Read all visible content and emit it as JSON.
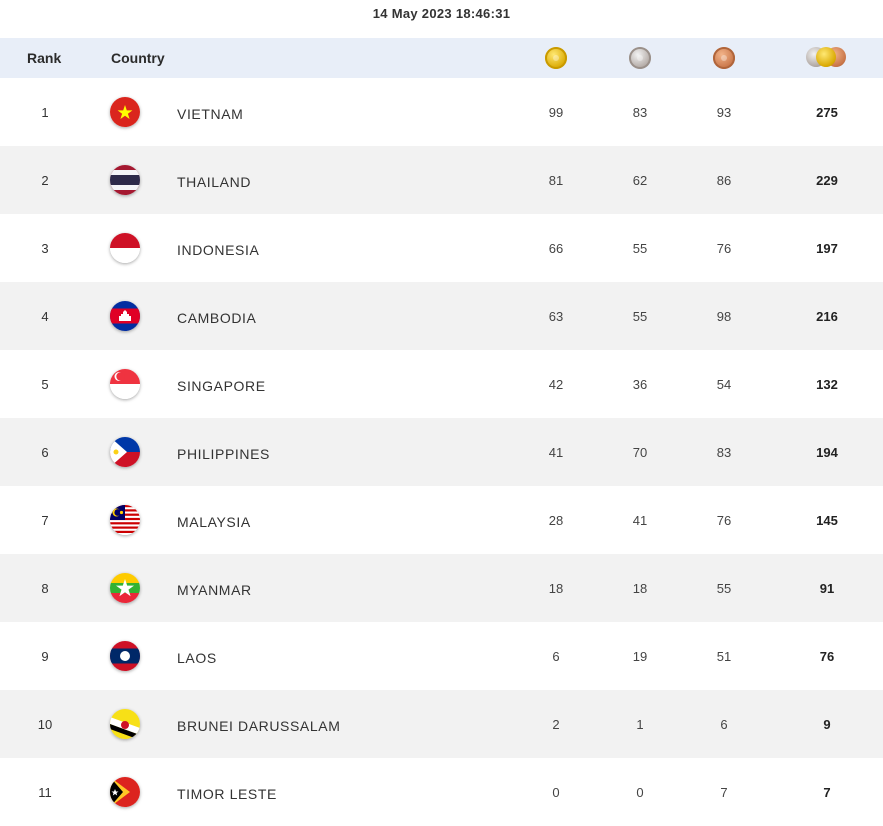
{
  "timestamp": "14 May 2023  18:46:31",
  "header": {
    "rank_label": "Rank",
    "country_label": "Country",
    "icons": [
      "gold-medal-icon",
      "silver-medal-icon",
      "bronze-medal-icon",
      "total-medals-icon"
    ]
  },
  "colors": {
    "header_bg": "#e8eef8",
    "alt_row_bg": "#f2f2f2",
    "gold": "#d9a800",
    "silver": "#b0a7a2",
    "bronze": "#c87447"
  },
  "rows": [
    {
      "rank": "1",
      "country": "VIETNAM",
      "flag": "vietnam-flag-icon",
      "gold": "99",
      "silver": "83",
      "bronze": "93",
      "total": "275"
    },
    {
      "rank": "2",
      "country": "THAILAND",
      "flag": "thailand-flag-icon",
      "gold": "81",
      "silver": "62",
      "bronze": "86",
      "total": "229"
    },
    {
      "rank": "3",
      "country": "INDONESIA",
      "flag": "indonesia-flag-icon",
      "gold": "66",
      "silver": "55",
      "bronze": "76",
      "total": "197"
    },
    {
      "rank": "4",
      "country": "CAMBODIA",
      "flag": "cambodia-flag-icon",
      "gold": "63",
      "silver": "55",
      "bronze": "98",
      "total": "216"
    },
    {
      "rank": "5",
      "country": "SINGAPORE",
      "flag": "singapore-flag-icon",
      "gold": "42",
      "silver": "36",
      "bronze": "54",
      "total": "132"
    },
    {
      "rank": "6",
      "country": "PHILIPPINES",
      "flag": "philippines-flag-icon",
      "gold": "41",
      "silver": "70",
      "bronze": "83",
      "total": "194"
    },
    {
      "rank": "7",
      "country": "MALAYSIA",
      "flag": "malaysia-flag-icon",
      "gold": "28",
      "silver": "41",
      "bronze": "76",
      "total": "145"
    },
    {
      "rank": "8",
      "country": "MYANMAR",
      "flag": "myanmar-flag-icon",
      "gold": "18",
      "silver": "18",
      "bronze": "55",
      "total": "91"
    },
    {
      "rank": "9",
      "country": "LAOS",
      "flag": "laos-flag-icon",
      "gold": "6",
      "silver": "19",
      "bronze": "51",
      "total": "76"
    },
    {
      "rank": "10",
      "country": "BRUNEI DARUSSALAM",
      "flag": "brunei-flag-icon",
      "gold": "2",
      "silver": "1",
      "bronze": "6",
      "total": "9"
    },
    {
      "rank": "11",
      "country": "TIMOR LESTE",
      "flag": "timor-leste-flag-icon",
      "gold": "0",
      "silver": "0",
      "bronze": "7",
      "total": "7"
    }
  ]
}
